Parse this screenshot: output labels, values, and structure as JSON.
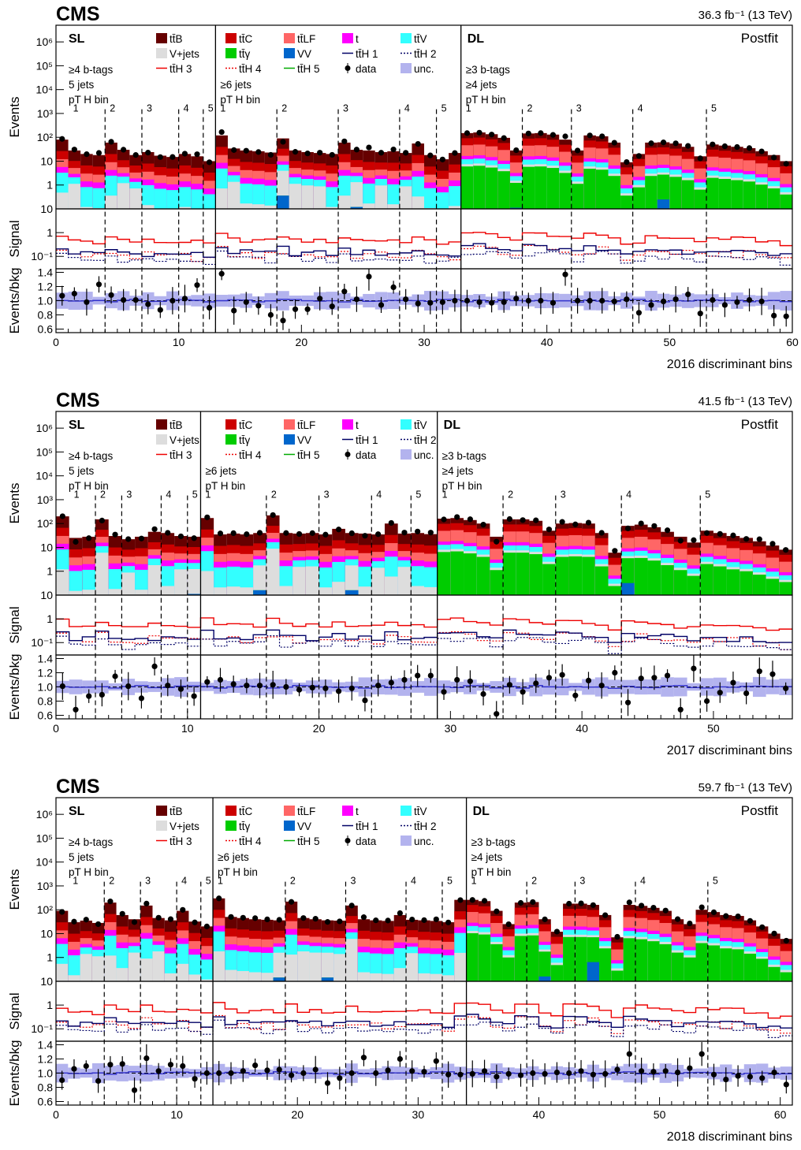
{
  "legend": [
    {
      "label": "tt̄B",
      "color": "#660000",
      "kind": "box"
    },
    {
      "label": "tt̄C",
      "color": "#cc0000",
      "kind": "box"
    },
    {
      "label": "tt̄LF",
      "color": "#ff6666",
      "kind": "box"
    },
    {
      "label": "t",
      "color": "#ff00ff",
      "kind": "box"
    },
    {
      "label": "tt̄V",
      "color": "#33ffff",
      "kind": "box"
    },
    {
      "label": "V+jets",
      "color": "#dddddd",
      "kind": "box"
    },
    {
      "label": "tt̄γ",
      "color": "#00cc00",
      "kind": "box"
    },
    {
      "label": "VV",
      "color": "#0066cc",
      "kind": "box"
    },
    {
      "label": "tt̄H 1",
      "color": "#000066",
      "kind": "solid"
    },
    {
      "label": "tt̄H 2",
      "color": "#000066",
      "kind": "dotted"
    },
    {
      "label": "tt̄H 3",
      "color": "#ee0000",
      "kind": "solid"
    },
    {
      "label": "tt̄H 4",
      "color": "#ee0000",
      "kind": "dotted"
    },
    {
      "label": "tt̄H 5",
      "color": "#00aa00",
      "kind": "solid"
    },
    {
      "label": "data",
      "color": "#000000",
      "kind": "marker"
    },
    {
      "label": "unc.",
      "color": "#b3b3ee",
      "kind": "box"
    }
  ],
  "labels": {
    "experiment": "CMS",
    "postfit": "Postfit",
    "sl": "SL",
    "dl": "DL",
    "sl_cat1": [
      "≥4 b-tags",
      "5 jets",
      "pT H bin"
    ],
    "sl_cat2": [
      "≥6 jets",
      "pT H bin"
    ],
    "dl_cat": [
      "≥3 b-tags",
      "≥4 jets",
      "pT H bin"
    ],
    "ylabel_main": "Events",
    "ylabel_signal": "Signal",
    "ylabel_ratio": "Events/bkg",
    "main_ticks": [
      "1",
      "10",
      "10²",
      "10³",
      "10⁴",
      "10⁵",
      "10⁶"
    ],
    "signal_ticks": [
      "10⁻¹",
      "1",
      "10"
    ],
    "ratio_ticks": [
      "0.6",
      "0.8",
      "1.0",
      "1.2",
      "1.4"
    ]
  },
  "chart_data": [
    {
      "type": "bar",
      "stacked": true,
      "log_y": true,
      "lumi": "36.3 fb⁻¹ (13 TeV)",
      "xlabel": "2016 discriminant bins",
      "xlim": [
        0,
        60
      ],
      "x_ticks": [
        0,
        10,
        20,
        30,
        40,
        50,
        60
      ],
      "ylim_main": [
        0.1,
        5000000
      ],
      "ylim_signal": [
        0.03,
        10
      ],
      "ylim_ratio": [
        0.55,
        1.45
      ],
      "region_boundaries": [
        13,
        33
      ],
      "sl_pt_dividers": [
        4,
        7,
        10,
        12,
        18,
        23,
        28,
        31
      ],
      "dl_pt_dividers": [
        38,
        42,
        47,
        53
      ],
      "sl_pt_labels": [
        {
          "x": 1,
          "label": "1"
        },
        {
          "x": 4,
          "label": "2"
        },
        {
          "x": 7,
          "label": "3"
        },
        {
          "x": 10,
          "label": "4"
        },
        {
          "x": 12,
          "label": "5"
        },
        {
          "x": 13,
          "label": "1"
        },
        {
          "x": 18,
          "label": "2"
        },
        {
          "x": 23,
          "label": "3"
        },
        {
          "x": 28,
          "label": "4"
        },
        {
          "x": 31,
          "label": "5"
        }
      ],
      "dl_pt_labels": [
        {
          "x": 33,
          "label": "1"
        },
        {
          "x": 38,
          "label": "2"
        },
        {
          "x": 42,
          "label": "3"
        },
        {
          "x": 47,
          "label": "4"
        },
        {
          "x": 53,
          "label": "5"
        }
      ],
      "totals": [
        80,
        28,
        20,
        18,
        60,
        30,
        18,
        24,
        17,
        15,
        20,
        16,
        10,
        120,
        34,
        28,
        26,
        23,
        90,
        28,
        24,
        22,
        20,
        60,
        30,
        28,
        24,
        26,
        22,
        55,
        18,
        12,
        22,
        150,
        160,
        135,
        95,
        28,
        145,
        150,
        130,
        80,
        28,
        120,
        110,
        60,
        9,
        20,
        60,
        62,
        55,
        40,
        16,
        50,
        45,
        40,
        35,
        26,
        18,
        10
      ],
      "ratio": [
        1.07,
        1.1,
        0.98,
        1.23,
        1.08,
        1.01,
        1.01,
        0.95,
        0.87,
        1.0,
        1.03,
        1.22,
        0.9,
        1.38,
        0.86,
        0.98,
        0.93,
        0.8,
        0.72,
        0.88,
        0.88,
        1.03,
        0.92,
        1.13,
        1.02,
        1.34,
        0.94,
        1.19,
        1.02,
        0.96,
        0.97,
        0.98,
        1.0,
        1.0,
        0.98,
        0.97,
        0.98,
        1.03,
        1.0,
        1.0,
        0.97,
        1.37,
        1.0,
        1.0,
        1.0,
        0.99,
        1.02,
        0.83,
        0.94,
        0.99,
        1.02,
        1.09,
        0.82,
        1.01,
        0.94,
        0.98,
        1.01,
        0.99,
        0.79,
        0.78
      ]
    },
    {
      "type": "bar",
      "stacked": true,
      "log_y": true,
      "lumi": "41.5 fb⁻¹ (13 TeV)",
      "xlabel": "2017 discriminant bins",
      "xlim": [
        0,
        56
      ],
      "x_ticks": [
        0,
        10,
        20,
        30,
        40,
        50
      ],
      "ylim_main": [
        0.1,
        5000000
      ],
      "ylim_signal": [
        0.03,
        10
      ],
      "ylim_ratio": [
        0.55,
        1.45
      ],
      "region_boundaries": [
        11,
        29
      ],
      "sl_pt_dividers": [
        3,
        5,
        8,
        10,
        16,
        20,
        24,
        27
      ],
      "dl_pt_dividers": [
        34,
        38,
        43,
        49
      ],
      "sl_pt_labels": [
        {
          "x": 1,
          "label": "1"
        },
        {
          "x": 3,
          "label": "2"
        },
        {
          "x": 5,
          "label": "3"
        },
        {
          "x": 8,
          "label": "4"
        },
        {
          "x": 10,
          "label": "5"
        },
        {
          "x": 11,
          "label": "1"
        },
        {
          "x": 16,
          "label": "2"
        },
        {
          "x": 20,
          "label": "3"
        },
        {
          "x": 24,
          "label": "4"
        },
        {
          "x": 27,
          "label": "5"
        }
      ],
      "dl_pt_labels": [
        {
          "x": 29,
          "label": "1"
        },
        {
          "x": 34,
          "label": "2"
        },
        {
          "x": 38,
          "label": "3"
        },
        {
          "x": 43,
          "label": "4"
        },
        {
          "x": 49,
          "label": "5"
        }
      ],
      "totals": [
        200,
        25,
        28,
        150,
        30,
        22,
        28,
        45,
        40,
        30,
        28,
        170,
        35,
        38,
        35,
        40,
        220,
        40,
        38,
        40,
        35,
        60,
        40,
        38,
        35,
        100,
        38,
        40,
        36,
        160,
        170,
        140,
        100,
        28,
        150,
        150,
        130,
        50,
        100,
        105,
        100,
        40,
        6,
        80,
        90,
        70,
        45,
        28,
        16,
        50,
        40,
        30,
        25,
        18,
        12,
        8
      ],
      "ratio": [
        1.01,
        0.68,
        0.87,
        0.89,
        1.15,
        1.01,
        0.84,
        1.29,
        1.02,
        0.97,
        0.87,
        1.07,
        1.1,
        1.04,
        1.02,
        1.02,
        1.03,
        1.0,
        0.96,
        0.99,
        0.98,
        0.94,
        0.98,
        0.81,
        1.02,
        1.06,
        1.1,
        1.16,
        1.16,
        0.93,
        1.1,
        1.08,
        0.9,
        0.62,
        1.03,
        0.93,
        1.05,
        1.13,
        1.17,
        0.88,
        1.09,
        1.02,
        1.2,
        0.78,
        1.12,
        1.13,
        1.16,
        0.68,
        1.26,
        0.8,
        0.92,
        1.06,
        0.91,
        1.22,
        1.18,
        0.98
      ]
    },
    {
      "type": "bar",
      "stacked": true,
      "log_y": true,
      "lumi": "59.7 fb⁻¹ (13 TeV)",
      "xlabel": "2018 discriminant bins",
      "xlim": [
        0,
        61
      ],
      "x_ticks": [
        0,
        10,
        20,
        30,
        40,
        50,
        60
      ],
      "ylim_main": [
        0.1,
        5000000
      ],
      "ylim_signal": [
        0.03,
        10
      ],
      "ylim_ratio": [
        0.55,
        1.45
      ],
      "region_boundaries": [
        13,
        34
      ],
      "sl_pt_dividers": [
        4,
        7,
        10,
        12,
        19,
        24,
        29,
        32
      ],
      "dl_pt_dividers": [
        39,
        43,
        48,
        54
      ],
      "sl_pt_labels": [
        {
          "x": 1,
          "label": "1"
        },
        {
          "x": 4,
          "label": "2"
        },
        {
          "x": 7,
          "label": "3"
        },
        {
          "x": 10,
          "label": "4"
        },
        {
          "x": 12,
          "label": "5"
        },
        {
          "x": 13,
          "label": "1"
        },
        {
          "x": 19,
          "label": "2"
        },
        {
          "x": 24,
          "label": "3"
        },
        {
          "x": 29,
          "label": "4"
        },
        {
          "x": 32,
          "label": "5"
        }
      ],
      "dl_pt_labels": [
        {
          "x": 34,
          "label": "1"
        },
        {
          "x": 39,
          "label": "2"
        },
        {
          "x": 43,
          "label": "3"
        },
        {
          "x": 48,
          "label": "4"
        },
        {
          "x": 54,
          "label": "5"
        }
      ],
      "totals": [
        90,
        30,
        35,
        28,
        200,
        60,
        40,
        150,
        45,
        36,
        90,
        32,
        20,
        300,
        50,
        45,
        40,
        38,
        36,
        220,
        45,
        40,
        36,
        35,
        150,
        40,
        36,
        34,
        60,
        38,
        36,
        34,
        30,
        260,
        260,
        230,
        90,
        25,
        200,
        210,
        40,
        12,
        180,
        180,
        160,
        60,
        7,
        160,
        145,
        120,
        90,
        40,
        25,
        100,
        80,
        60,
        55,
        36,
        20,
        10,
        6
      ],
      "ratio": [
        0.9,
        1.06,
        1.1,
        0.89,
        1.12,
        1.13,
        0.76,
        1.21,
        1.03,
        1.12,
        1.1,
        0.92,
        1.0,
        1.0,
        1.0,
        1.03,
        1.11,
        1.04,
        1.05,
        0.97,
        1.0,
        1.05,
        0.86,
        0.93,
        1.0,
        1.22,
        1.0,
        1.04,
        1.2,
        1.03,
        1.02,
        1.17,
        0.98,
        0.98,
        0.99,
        1.03,
        0.95,
        0.99,
        0.97,
        1.0,
        0.99,
        1.01,
        1.0,
        1.03,
        0.98,
        0.99,
        1.05,
        1.27,
        1.03,
        1.02,
        1.03,
        1.01,
        1.07,
        1.27,
        0.98,
        0.91,
        0.96,
        0.95,
        0.93,
        1.01,
        0.84
      ]
    }
  ]
}
